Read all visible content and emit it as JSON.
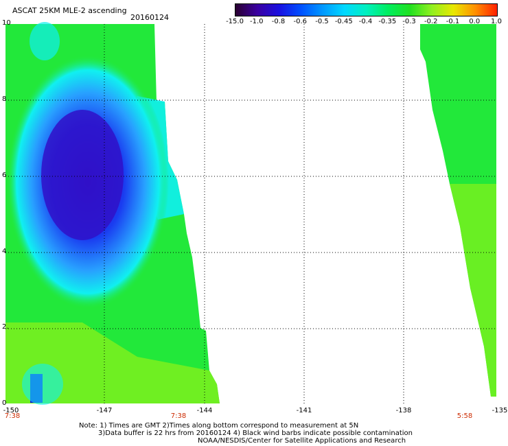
{
  "header": {
    "title": "ASCAT 25KM MLE-2 ascending",
    "date": "20160124"
  },
  "colorbar": {
    "labels": [
      "-15.0",
      "-1.0",
      "-0.8",
      "-0.6",
      "-0.5",
      "-0.45",
      "-0.4",
      "-0.35",
      "-0.3",
      "-0.2",
      "-0.1",
      "0.0",
      "1.0"
    ],
    "colors": [
      "#2a0030",
      "#3a00a0",
      "#1a10e0",
      "#0050ff",
      "#0098ff",
      "#00d8ff",
      "#00f0c0",
      "#00ee60",
      "#20e020",
      "#90f020",
      "#e8e800",
      "#ff9000",
      "#ff2000"
    ]
  },
  "map": {
    "x_tick_labels": [
      "-150",
      "-147",
      "-144",
      "-141",
      "-138",
      "-135"
    ],
    "y_tick_labels": [
      "0",
      "2.",
      "4",
      "6",
      "8",
      "10"
    ],
    "time_labels": [
      "7:38",
      "7:38",
      "5:58"
    ],
    "swath_colors": {
      "deep": "#3010c8",
      "blue": "#1a3cf0",
      "light_blue": "#28a0ff",
      "cyan": "#10f0f0",
      "green": "#22e83a",
      "yellow_green": "#7cf01e"
    }
  },
  "notes": {
    "line1": "Note: 1) Times are GMT 2)Times along bottom correspond to measurement at 5N",
    "line2": "3)Data buffer is 22 hrs from 20160124 4) Black wind barbs indicate possible contamination",
    "line3": "NOAA/NESDIS/Center for Satellite Applications and Research"
  }
}
